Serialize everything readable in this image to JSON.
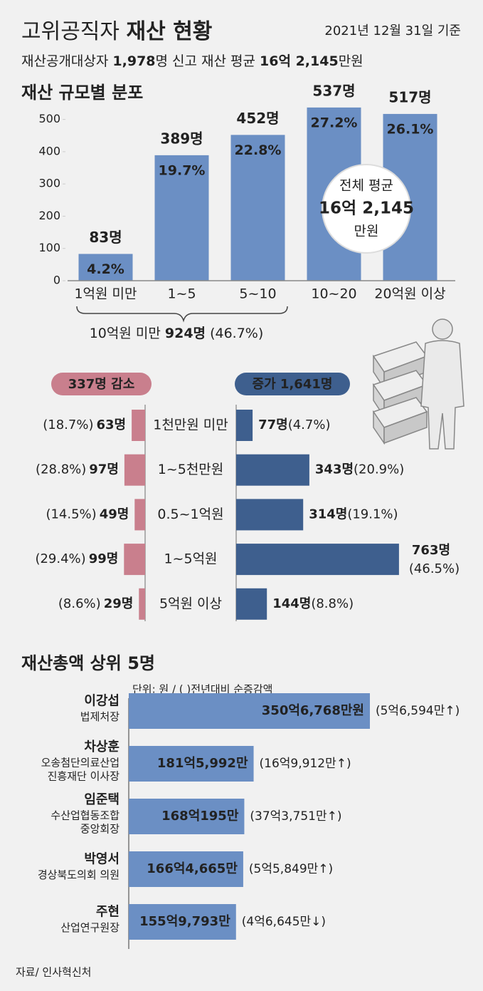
{
  "header": {
    "title_parts": [
      "고위공직자 ",
      "재산 현황"
    ],
    "date": "2021년 12월 31일 기준",
    "subtitle_parts": [
      "재산공개대상자 ",
      "1,978",
      "명 신고 재산 평균 ",
      "16억 2,145",
      "만원"
    ]
  },
  "chart_data": [
    {
      "type": "bar",
      "title": "재산 규모별 분포",
      "categories": [
        "1억원 미만",
        "1~5",
        "5~10",
        "10~20",
        "20억원 이상"
      ],
      "values": [
        83,
        389,
        452,
        537,
        517
      ],
      "value_labels": [
        "83명",
        "389명",
        "452명",
        "537명",
        "517명"
      ],
      "share_labels": [
        "4.2%",
        "19.7%",
        "22.8%",
        "27.2%",
        "26.1%"
      ],
      "color": "#6b8fc4",
      "ylim": [
        0,
        550
      ],
      "yticks": [
        0,
        100,
        200,
        300,
        400,
        500
      ],
      "annotation_parts": [
        "10억원 미만 ",
        "924명",
        " (46.7%)"
      ],
      "callout": [
        "전체 평균",
        "16억 2,145",
        "만원"
      ]
    },
    {
      "type": "diverging_bar",
      "categories": [
        "1천만원 미만",
        "1~5천만원",
        "0.5~1억원",
        "1~5억원",
        "5억원 이상"
      ],
      "xlim": [
        0,
        800
      ],
      "series": [
        {
          "name": "337명 감소",
          "color": "#c97f8d",
          "values": [
            63,
            97,
            49,
            99,
            29
          ],
          "value_labels": [
            "63명",
            "97명",
            "49명",
            "99명",
            "29명"
          ],
          "share_labels": [
            "(18.7%)",
            "(28.8%)",
            "(14.5%)",
            "(29.4%)",
            "(8.6%)"
          ]
        },
        {
          "name": "증가 1,641명",
          "color": "#3e5f8e",
          "values": [
            77,
            343,
            314,
            763,
            144
          ],
          "value_labels": [
            "77명",
            "343명",
            "314명",
            "763명",
            "144명"
          ],
          "share_labels": [
            "(4.7%)",
            "(20.9%)",
            "(19.1%)",
            "(46.5%)",
            "(8.8%)"
          ]
        }
      ]
    },
    {
      "type": "hbar",
      "title": "재산총액 상위 5명",
      "note": "단위: 원 / ( )전년대비 순증감액",
      "categories": [
        "이강섭",
        "차상훈",
        "임준택",
        "박영서",
        "주현"
      ],
      "roles": [
        [
          "법제처장"
        ],
        [
          "오송첨단의료산업",
          "진흥재단 이사장"
        ],
        [
          "수산업협동조합",
          "중앙회장"
        ],
        [
          "경상북도의회 의원"
        ],
        [
          "산업연구원장"
        ]
      ],
      "values": [
        35067680000,
        18159920000,
        16801950000,
        16646650000,
        15597930000
      ],
      "value_labels": [
        "350억6,768만원",
        "181억5,992만",
        "168억195만",
        "166억4,665만",
        "155억9,793만"
      ],
      "changes": [
        565940000,
        1699120000,
        3737510000,
        558490000,
        -466450000
      ],
      "change_labels": [
        "(5억6,594만↑)",
        "(16억9,912만↑)",
        "(37억3,751만↑)",
        "(5억5,849만↑)",
        "(4억6,645만↓)"
      ],
      "color": "#6b8fc4",
      "xlim": [
        0,
        36000000000
      ]
    }
  ],
  "source": "자료/ 인사혁신처"
}
